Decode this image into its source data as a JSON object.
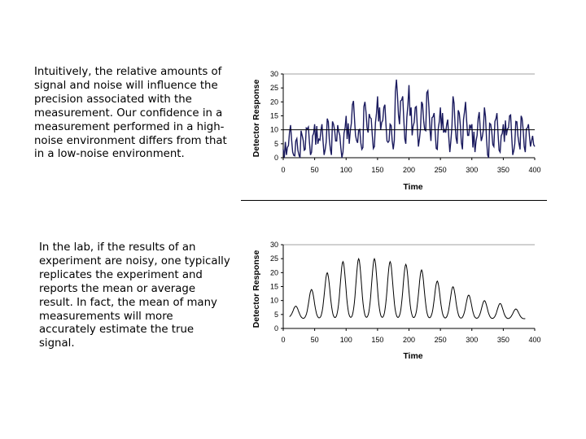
{
  "text": {
    "para1": "Intuitively, the relative amounts of signal and noise will influence the precision associated with the measurement.  Our confidence in a measurement performed in a high-noise environment differs from that in a low-noise environment.",
    "para2": "In the lab, if the results of an experiment are noisy, one typically replicates the experiment and reports the mean or average result. In fact, the mean of many measurements will more accurately estimate the true signal."
  },
  "colors": {
    "noisy_line": "#1a1a5e",
    "clean_line": "#000000",
    "axis": "#000000",
    "grid": "#a0a0a0"
  },
  "chart_data": [
    {
      "type": "line",
      "xlabel": "Time",
      "ylabel": "Detector Response",
      "xlim": [
        0,
        400
      ],
      "ylim": [
        0,
        30
      ],
      "xticks": [
        0,
        50,
        100,
        150,
        200,
        250,
        300,
        350,
        400
      ],
      "yticks": [
        0,
        5,
        10,
        15,
        20,
        25,
        30
      ],
      "reference_line_y": 10,
      "series": [
        {
          "x": [
            0,
            5,
            10,
            15,
            20,
            25,
            30,
            35,
            40,
            45,
            50,
            55,
            60,
            65,
            70,
            75,
            80,
            85,
            90,
            95,
            100,
            105,
            110,
            115,
            120,
            125,
            130,
            135,
            140,
            145,
            150,
            155,
            160,
            165,
            170,
            175,
            180,
            185,
            190,
            195,
            200,
            205,
            210,
            215,
            220,
            225,
            230,
            235,
            240,
            245,
            250,
            255,
            260,
            265,
            270,
            275,
            280,
            285,
            290,
            295,
            300,
            305,
            310,
            315,
            320,
            325,
            330,
            335,
            340,
            345,
            350,
            355,
            360,
            365,
            370,
            375,
            380,
            385,
            390,
            395,
            400
          ],
          "y": [
            3,
            1,
            9,
            2,
            6,
            1,
            8,
            3,
            11,
            2,
            12,
            5,
            10,
            1,
            14,
            3,
            12,
            6,
            8,
            2,
            15,
            5,
            19,
            8,
            10,
            3,
            20,
            9,
            14,
            4,
            22,
            10,
            18,
            6,
            12,
            3,
            28,
            12,
            22,
            5,
            26,
            8,
            18,
            4,
            20,
            10,
            24,
            6,
            16,
            3,
            18,
            9,
            12,
            2,
            22,
            7,
            16,
            3,
            20,
            8,
            12,
            2,
            14,
            6,
            18,
            1,
            12,
            4,
            16,
            2,
            12,
            8,
            15,
            1,
            13,
            5,
            14,
            2,
            12,
            6,
            4
          ]
        }
      ]
    },
    {
      "type": "line",
      "xlabel": "Time",
      "ylabel": "Detector Response",
      "xlim": [
        0,
        400
      ],
      "ylim": [
        0,
        30
      ],
      "xticks": [
        0,
        50,
        100,
        150,
        200,
        250,
        300,
        350,
        400
      ],
      "yticks": [
        0,
        5,
        10,
        15,
        20,
        25,
        30
      ],
      "series": [
        {
          "peaks_x": [
            20,
            45,
            70,
            95,
            120,
            145,
            170,
            195,
            220,
            245,
            270,
            295,
            320,
            345,
            370
          ],
          "peaks_y": [
            8,
            14,
            20,
            24,
            25,
            25,
            24,
            23,
            21,
            17,
            15,
            12,
            10,
            9,
            7
          ],
          "baseline": 4
        }
      ]
    }
  ]
}
